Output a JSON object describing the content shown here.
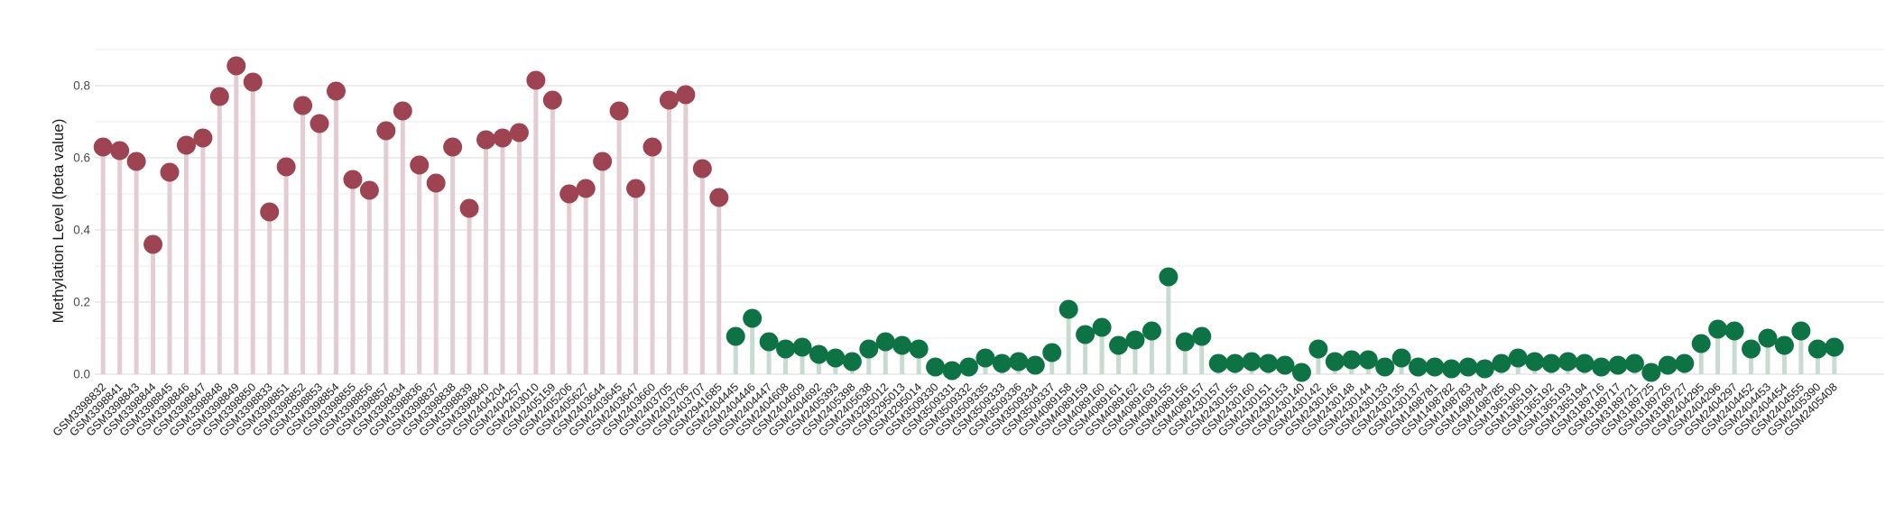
{
  "figure": {
    "title": "",
    "ylabel": "Methylation Level (beta value)",
    "background_color": "#ffffff"
  },
  "chart_data": {
    "type": "lollipop",
    "title": "",
    "xlabel": "",
    "ylabel": "Methylation Level (beta value)",
    "ylim": [
      0,
      0.9
    ],
    "grid": {
      "major": [
        0,
        0.2,
        0.4,
        0.6,
        0.8
      ],
      "minor": [
        0.1,
        0.3,
        0.5,
        0.7,
        0.9
      ],
      "major_color": "#e6e6e6",
      "minor_color": "#f2f2f2"
    },
    "ytick_labels": [
      "0.0",
      "0.2",
      "0.4",
      "0.6",
      "0.8"
    ],
    "ytick_values": [
      0,
      0.2,
      0.4,
      0.6,
      0.8
    ],
    "x_tick_rotation": 45,
    "legend": null,
    "groups": [
      {
        "name": "high-methylation-maroon",
        "dot_color": "#9d4351",
        "stem_color": "#e4ccd3",
        "start": 0,
        "count": 38
      },
      {
        "name": "low-methylation-green",
        "dot_color": "#0d7345",
        "stem_color": "#c8dbd0",
        "start": 38,
        "count": 67
      }
    ],
    "categories": [
      "GSM3398832",
      "GSM3398841",
      "GSM3398843",
      "GSM3398844",
      "GSM3398845",
      "GSM3398846",
      "GSM3398847",
      "GSM3398848",
      "GSM3398849",
      "GSM3398850",
      "GSM3398833",
      "GSM3398851",
      "GSM3398852",
      "GSM3398853",
      "GSM3398854",
      "GSM3398855",
      "GSM3398856",
      "GSM3398857",
      "GSM3398834",
      "GSM3398836",
      "GSM3398837",
      "GSM3398838",
      "GSM3398839",
      "GSM3398840",
      "GSM2404204",
      "GSM2404257",
      "GSM2403010",
      "GSM2405159",
      "GSM2405206",
      "GSM2405627",
      "GSM2403644",
      "GSM2403645",
      "GSM2403647",
      "GSM2403660",
      "GSM2403705",
      "GSM2403706",
      "GSM2403707",
      "GSM2941685",
      "GSM2404445",
      "GSM2404446",
      "GSM2404447",
      "GSM2404608",
      "GSM2404609",
      "GSM2404692",
      "GSM2405393",
      "GSM2405398",
      "GSM2405638",
      "GSM3295012",
      "GSM3295013",
      "GSM3295014",
      "GSM3509330",
      "GSM3509331",
      "GSM3509332",
      "GSM3509335",
      "GSM3509333",
      "GSM3509336",
      "GSM3509334",
      "GSM3509337",
      "GSM4089158",
      "GSM4089159",
      "GSM4089160",
      "GSM4089161",
      "GSM4089162",
      "GSM4089163",
      "GSM4089155",
      "GSM4089156",
      "GSM4089157",
      "GSM2430157",
      "GSM2430155",
      "GSM2430160",
      "GSM2430151",
      "GSM2430153",
      "GSM2430140",
      "GSM2430142",
      "GSM2430146",
      "GSM2430148",
      "GSM2430144",
      "GSM2430133",
      "GSM2430135",
      "GSM2430137",
      "GSM1498781",
      "GSM1498782",
      "GSM1498783",
      "GSM1498784",
      "GSM1498785",
      "GSM1365190",
      "GSM1365191",
      "GSM1365192",
      "GSM1365193",
      "GSM1365194",
      "GSM3189716",
      "GSM3189717",
      "GSM3189721",
      "GSM3189725",
      "GSM3189726",
      "GSM3189727",
      "GSM2404295",
      "GSM2404296",
      "GSM2404297",
      "GSM2404452",
      "GSM2404453",
      "GSM2404454",
      "GSM2404555",
      "GSM2405390",
      "GSM2405408"
    ],
    "values": [
      0.63,
      0.62,
      0.59,
      0.36,
      0.56,
      0.635,
      0.655,
      0.77,
      0.855,
      0.81,
      0.45,
      0.575,
      0.745,
      0.695,
      0.785,
      0.54,
      0.51,
      0.675,
      0.73,
      0.58,
      0.53,
      0.63,
      0.46,
      0.65,
      0.655,
      0.67,
      0.815,
      0.76,
      0.5,
      0.515,
      0.59,
      0.73,
      0.515,
      0.63,
      0.76,
      0.775,
      0.57,
      0.49,
      0.105,
      0.155,
      0.09,
      0.07,
      0.075,
      0.055,
      0.045,
      0.035,
      0.07,
      0.09,
      0.08,
      0.07,
      0.02,
      0.01,
      0.02,
      0.045,
      0.03,
      0.035,
      0.025,
      0.06,
      0.18,
      0.11,
      0.13,
      0.08,
      0.095,
      0.12,
      0.27,
      0.09,
      0.105,
      0.03,
      0.03,
      0.035,
      0.03,
      0.025,
      0.005,
      0.07,
      0.035,
      0.04,
      0.04,
      0.02,
      0.045,
      0.02,
      0.02,
      0.015,
      0.02,
      0.015,
      0.03,
      0.045,
      0.035,
      0.03,
      0.035,
      0.03,
      0.02,
      0.025,
      0.03,
      0.005,
      0.025,
      0.03,
      0.085,
      0.125,
      0.12,
      0.07,
      0.1,
      0.08,
      0.12,
      0.07,
      0.075
    ]
  }
}
